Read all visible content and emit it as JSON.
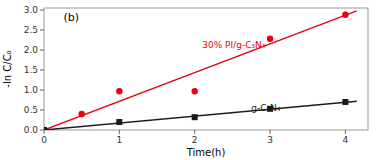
{
  "chart_data": {
    "type": "scatter",
    "title": "(b)",
    "xlabel": "Time(h)",
    "ylabel": "-ln C/C₀",
    "xlim": [
      0,
      4.3
    ],
    "ylim": [
      0,
      3.05
    ],
    "xticks": [
      0,
      1,
      2,
      3,
      4
    ],
    "yticks": [
      {
        "value": 0.0,
        "label": "0.0"
      },
      0.5,
      {
        "value": 1.0,
        "label": "1.0"
      },
      1.5,
      {
        "value": 2.0,
        "label": "2.0"
      },
      2.5,
      {
        "value": 3.0,
        "label": "3.0"
      }
    ],
    "grid": false,
    "series": [
      {
        "type": "line",
        "color": "#e8000d",
        "line_style": "solid",
        "x": [
          0,
          4.15
        ],
        "values": [
          0.0,
          2.98
        ]
      },
      {
        "type": "scatter",
        "color": "#e8000d",
        "marker": "circle",
        "x": [
          0,
          0.5,
          1.0,
          2.0,
          3.0,
          4.0
        ],
        "values": [
          0.0,
          0.4,
          0.97,
          0.97,
          2.28,
          2.88
        ]
      },
      {
        "type": "line",
        "color": "#1a1a1a",
        "line_style": "solid",
        "x": [
          0,
          4.15
        ],
        "values": [
          0.0,
          0.72
        ]
      },
      {
        "type": "scatter",
        "color": "#1a1a1a",
        "marker": "square",
        "x": [
          0,
          1.0,
          2.0,
          3.0,
          4.0
        ],
        "values": [
          0.0,
          0.2,
          0.32,
          0.53,
          0.7
        ]
      }
    ],
    "annotations": [
      {
        "text": "30% PI/g-C₃N₄",
        "x": 2.1,
        "y": 2.05,
        "color": "#e8000d"
      },
      {
        "text": "g-C₃N₄",
        "x": 2.75,
        "y": 0.48,
        "color": "#1a1a1a"
      }
    ]
  }
}
